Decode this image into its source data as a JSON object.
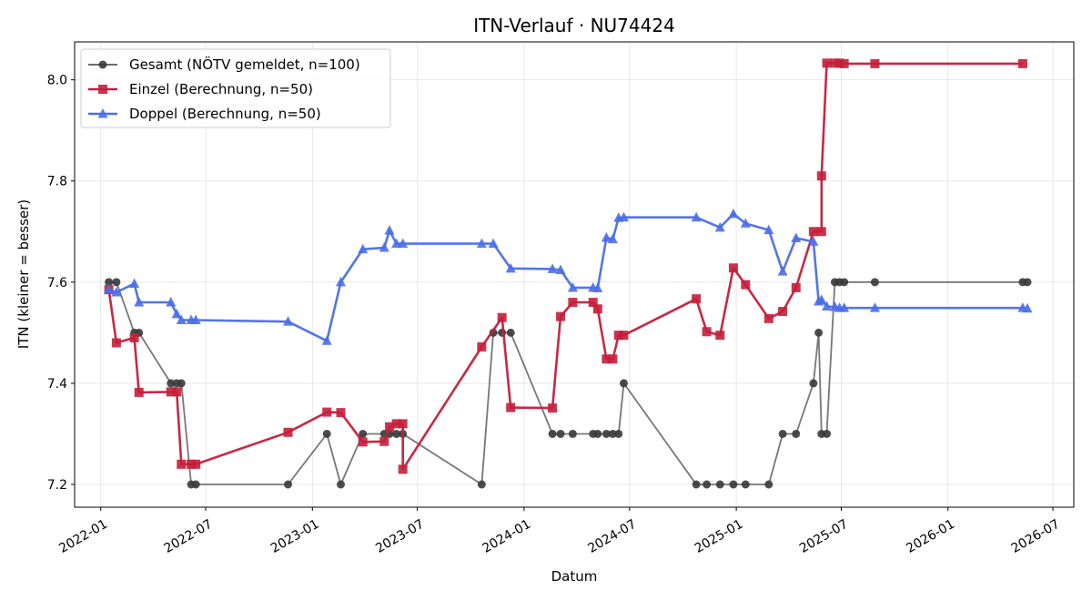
{
  "chart_data": {
    "type": "line",
    "title": "ITN-Verlauf · NU74424",
    "xlabel": "Datum",
    "ylabel": "ITN  (kleiner = besser)",
    "x_type": "date",
    "xlim": [
      "2021-11-17",
      "2026-08-06"
    ],
    "ylim": [
      7.155,
      8.075
    ],
    "x_ticks": [
      "2022-01-01",
      "2022-07-01",
      "2023-01-01",
      "2023-07-01",
      "2024-01-01",
      "2024-07-01",
      "2025-01-01",
      "2025-07-01",
      "2026-01-01",
      "2026-07-01"
    ],
    "x_tick_labels": [
      "2022-01",
      "2022-07",
      "2023-01",
      "2023-07",
      "2024-01",
      "2024-07",
      "2025-01",
      "2025-07",
      "2026-01",
      "2026-07"
    ],
    "y_ticks": [
      7.2,
      7.4,
      7.6,
      7.8,
      8.0
    ],
    "y_tick_labels": [
      "7.2",
      "7.4",
      "7.6",
      "7.8",
      "8.0"
    ],
    "grid": true,
    "legend_position": "top-left",
    "series": [
      {
        "name": "Gesamt (NÖTV gemeldet, n=100)",
        "color": "#555555",
        "marker": "circle",
        "points": [
          [
            "2022-01-15",
            7.6
          ],
          [
            "2022-01-28",
            7.6
          ],
          [
            "2022-02-28",
            7.5
          ],
          [
            "2022-03-08",
            7.5
          ],
          [
            "2022-05-02",
            7.4
          ],
          [
            "2022-05-12",
            7.4
          ],
          [
            "2022-05-20",
            7.4
          ],
          [
            "2022-06-06",
            7.2
          ],
          [
            "2022-06-14",
            7.2
          ],
          [
            "2022-11-20",
            7.2
          ],
          [
            "2023-01-26",
            7.3
          ],
          [
            "2023-02-19",
            7.2
          ],
          [
            "2023-03-29",
            7.3
          ],
          [
            "2023-05-05",
            7.3
          ],
          [
            "2023-05-14",
            7.3
          ],
          [
            "2023-05-26",
            7.3
          ],
          [
            "2023-06-06",
            7.3
          ],
          [
            "2023-10-20",
            7.2
          ],
          [
            "2023-11-09",
            7.5
          ],
          [
            "2023-11-24",
            7.5
          ],
          [
            "2023-12-09",
            7.5
          ],
          [
            "2024-02-19",
            7.3
          ],
          [
            "2024-03-04",
            7.3
          ],
          [
            "2024-03-25",
            7.3
          ],
          [
            "2024-04-29",
            7.3
          ],
          [
            "2024-05-07",
            7.3
          ],
          [
            "2024-05-22",
            7.3
          ],
          [
            "2024-06-02",
            7.3
          ],
          [
            "2024-06-12",
            7.3
          ],
          [
            "2024-06-21",
            7.4
          ],
          [
            "2024-10-24",
            7.2
          ],
          [
            "2024-11-11",
            7.2
          ],
          [
            "2024-12-04",
            7.2
          ],
          [
            "2024-12-27",
            7.2
          ],
          [
            "2025-01-17",
            7.2
          ],
          [
            "2025-02-26",
            7.2
          ],
          [
            "2025-03-22",
            7.3
          ],
          [
            "2025-04-14",
            7.3
          ],
          [
            "2025-05-14",
            7.4
          ],
          [
            "2025-05-23",
            7.5
          ],
          [
            "2025-05-28",
            7.3
          ],
          [
            "2025-06-06",
            7.3
          ],
          [
            "2025-06-20",
            7.6
          ],
          [
            "2025-06-28",
            7.6
          ],
          [
            "2025-07-06",
            7.6
          ],
          [
            "2025-08-28",
            7.6
          ],
          [
            "2026-05-10",
            7.6
          ],
          [
            "2026-05-18",
            7.6
          ]
        ]
      },
      {
        "name": "Einzel (Berechnung, n=50)",
        "color": "#c41e3a",
        "marker": "square",
        "points": [
          [
            "2022-01-15",
            7.585
          ],
          [
            "2022-01-28",
            7.48
          ],
          [
            "2022-02-28",
            7.49
          ],
          [
            "2022-03-08",
            7.382
          ],
          [
            "2022-05-02",
            7.383
          ],
          [
            "2022-05-12",
            7.383
          ],
          [
            "2022-05-20",
            7.24
          ],
          [
            "2022-06-06",
            7.24
          ],
          [
            "2022-06-14",
            7.24
          ],
          [
            "2022-11-20",
            7.303
          ],
          [
            "2023-01-26",
            7.343
          ],
          [
            "2023-02-19",
            7.342
          ],
          [
            "2023-03-29",
            7.284
          ],
          [
            "2023-05-05",
            7.285
          ],
          [
            "2023-05-14",
            7.314
          ],
          [
            "2023-05-26",
            7.32
          ],
          [
            "2023-06-06",
            7.32
          ],
          [
            "2023-06-06",
            7.23
          ],
          [
            "2023-10-20",
            7.472
          ],
          [
            "2023-11-24",
            7.53
          ],
          [
            "2023-12-09",
            7.352
          ],
          [
            "2024-02-19",
            7.351
          ],
          [
            "2024-03-04",
            7.532
          ],
          [
            "2024-03-25",
            7.56
          ],
          [
            "2024-04-29",
            7.56
          ],
          [
            "2024-05-07",
            7.547
          ],
          [
            "2024-05-22",
            7.448
          ],
          [
            "2024-06-02",
            7.448
          ],
          [
            "2024-06-12",
            7.495
          ],
          [
            "2024-06-21",
            7.495
          ],
          [
            "2024-10-24",
            7.567
          ],
          [
            "2024-11-11",
            7.502
          ],
          [
            "2024-12-04",
            7.495
          ],
          [
            "2024-12-27",
            7.628
          ],
          [
            "2025-01-17",
            7.595
          ],
          [
            "2025-02-26",
            7.528
          ],
          [
            "2025-03-22",
            7.542
          ],
          [
            "2025-04-14",
            7.589
          ],
          [
            "2025-05-14",
            7.7
          ],
          [
            "2025-05-28",
            7.7
          ],
          [
            "2025-05-28",
            7.81
          ],
          [
            "2025-06-06",
            8.033
          ],
          [
            "2025-06-20",
            8.033
          ],
          [
            "2025-06-28",
            8.033
          ],
          [
            "2025-07-06",
            8.032
          ],
          [
            "2025-08-28",
            8.032
          ],
          [
            "2026-05-10",
            8.032
          ]
        ]
      },
      {
        "name": "Doppel (Berechnung, n=50)",
        "color": "#4b6ee8",
        "marker": "triangle",
        "points": [
          [
            "2022-01-15",
            7.585
          ],
          [
            "2022-01-28",
            7.58
          ],
          [
            "2022-02-28",
            7.597
          ],
          [
            "2022-03-08",
            7.56
          ],
          [
            "2022-05-02",
            7.56
          ],
          [
            "2022-05-12",
            7.537
          ],
          [
            "2022-05-20",
            7.525
          ],
          [
            "2022-06-06",
            7.525
          ],
          [
            "2022-06-14",
            7.525
          ],
          [
            "2022-11-20",
            7.522
          ],
          [
            "2023-01-26",
            7.484
          ],
          [
            "2023-02-19",
            7.6
          ],
          [
            "2023-03-29",
            7.665
          ],
          [
            "2023-05-05",
            7.668
          ],
          [
            "2023-05-14",
            7.702
          ],
          [
            "2023-05-26",
            7.676
          ],
          [
            "2023-06-06",
            7.676
          ],
          [
            "2023-10-20",
            7.676
          ],
          [
            "2023-11-09",
            7.676
          ],
          [
            "2023-12-09",
            7.627
          ],
          [
            "2024-02-19",
            7.626
          ],
          [
            "2024-03-04",
            7.624
          ],
          [
            "2024-03-25",
            7.589
          ],
          [
            "2024-04-29",
            7.589
          ],
          [
            "2024-05-07",
            7.588
          ],
          [
            "2024-05-22",
            7.688
          ],
          [
            "2024-06-02",
            7.685
          ],
          [
            "2024-06-12",
            7.727
          ],
          [
            "2024-06-21",
            7.728
          ],
          [
            "2024-10-24",
            7.728
          ],
          [
            "2024-12-04",
            7.708
          ],
          [
            "2024-12-27",
            7.735
          ],
          [
            "2025-01-17",
            7.716
          ],
          [
            "2025-02-26",
            7.703
          ],
          [
            "2025-03-22",
            7.621
          ],
          [
            "2025-04-14",
            7.687
          ],
          [
            "2025-05-14",
            7.68
          ],
          [
            "2025-05-23",
            7.562
          ],
          [
            "2025-05-28",
            7.565
          ],
          [
            "2025-06-06",
            7.552
          ],
          [
            "2025-06-20",
            7.551
          ],
          [
            "2025-06-28",
            7.549
          ],
          [
            "2025-07-06",
            7.549
          ],
          [
            "2025-08-28",
            7.549
          ],
          [
            "2026-05-10",
            7.549
          ],
          [
            "2026-05-18",
            7.548
          ]
        ]
      }
    ]
  }
}
